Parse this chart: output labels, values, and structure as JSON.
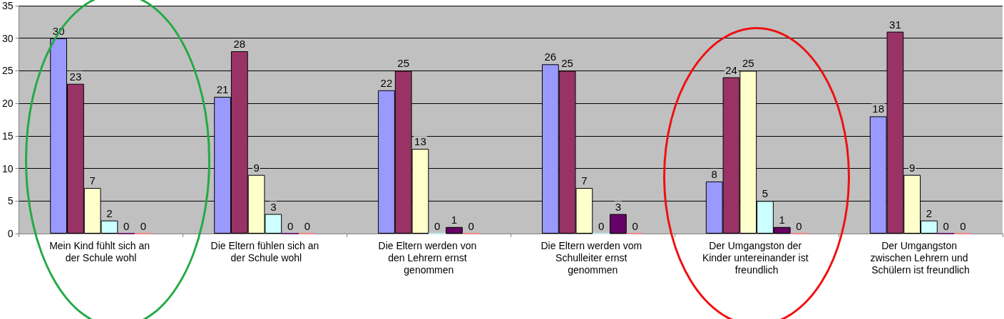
{
  "chart_data": {
    "type": "bar",
    "categories": [
      "Mein Kind fühlt sich an der Schule wohl",
      "Die Eltern fühlen sich an der Schule wohl",
      "Die Eltern werden von den Lehrern ernst genommen",
      "Die Eltern werden vom Schulleiter ernst genommen",
      "Der Umgangston der Kinder untereinander ist freundlich",
      "Der Umgangston zwischen Lehrern und Schülern ist freundlich"
    ],
    "series": [
      {
        "color": "#9999ff",
        "values": [
          30,
          21,
          22,
          26,
          8,
          18
        ]
      },
      {
        "color": "#993366",
        "values": [
          23,
          28,
          25,
          25,
          24,
          31
        ]
      },
      {
        "color": "#ffffcc",
        "values": [
          7,
          9,
          13,
          7,
          25,
          9
        ]
      },
      {
        "color": "#ccffff",
        "values": [
          2,
          3,
          0,
          0,
          5,
          2
        ]
      },
      {
        "color": "#660066",
        "values": [
          0,
          0,
          1,
          3,
          1,
          0
        ]
      },
      {
        "color": "#ff8080",
        "values": [
          0,
          0,
          0,
          0,
          0,
          0
        ]
      }
    ],
    "ylim": [
      0,
      35
    ],
    "yticks": [
      0,
      5,
      10,
      15,
      20,
      25,
      30,
      35
    ],
    "grid": "y",
    "data_labels": true
  }
}
